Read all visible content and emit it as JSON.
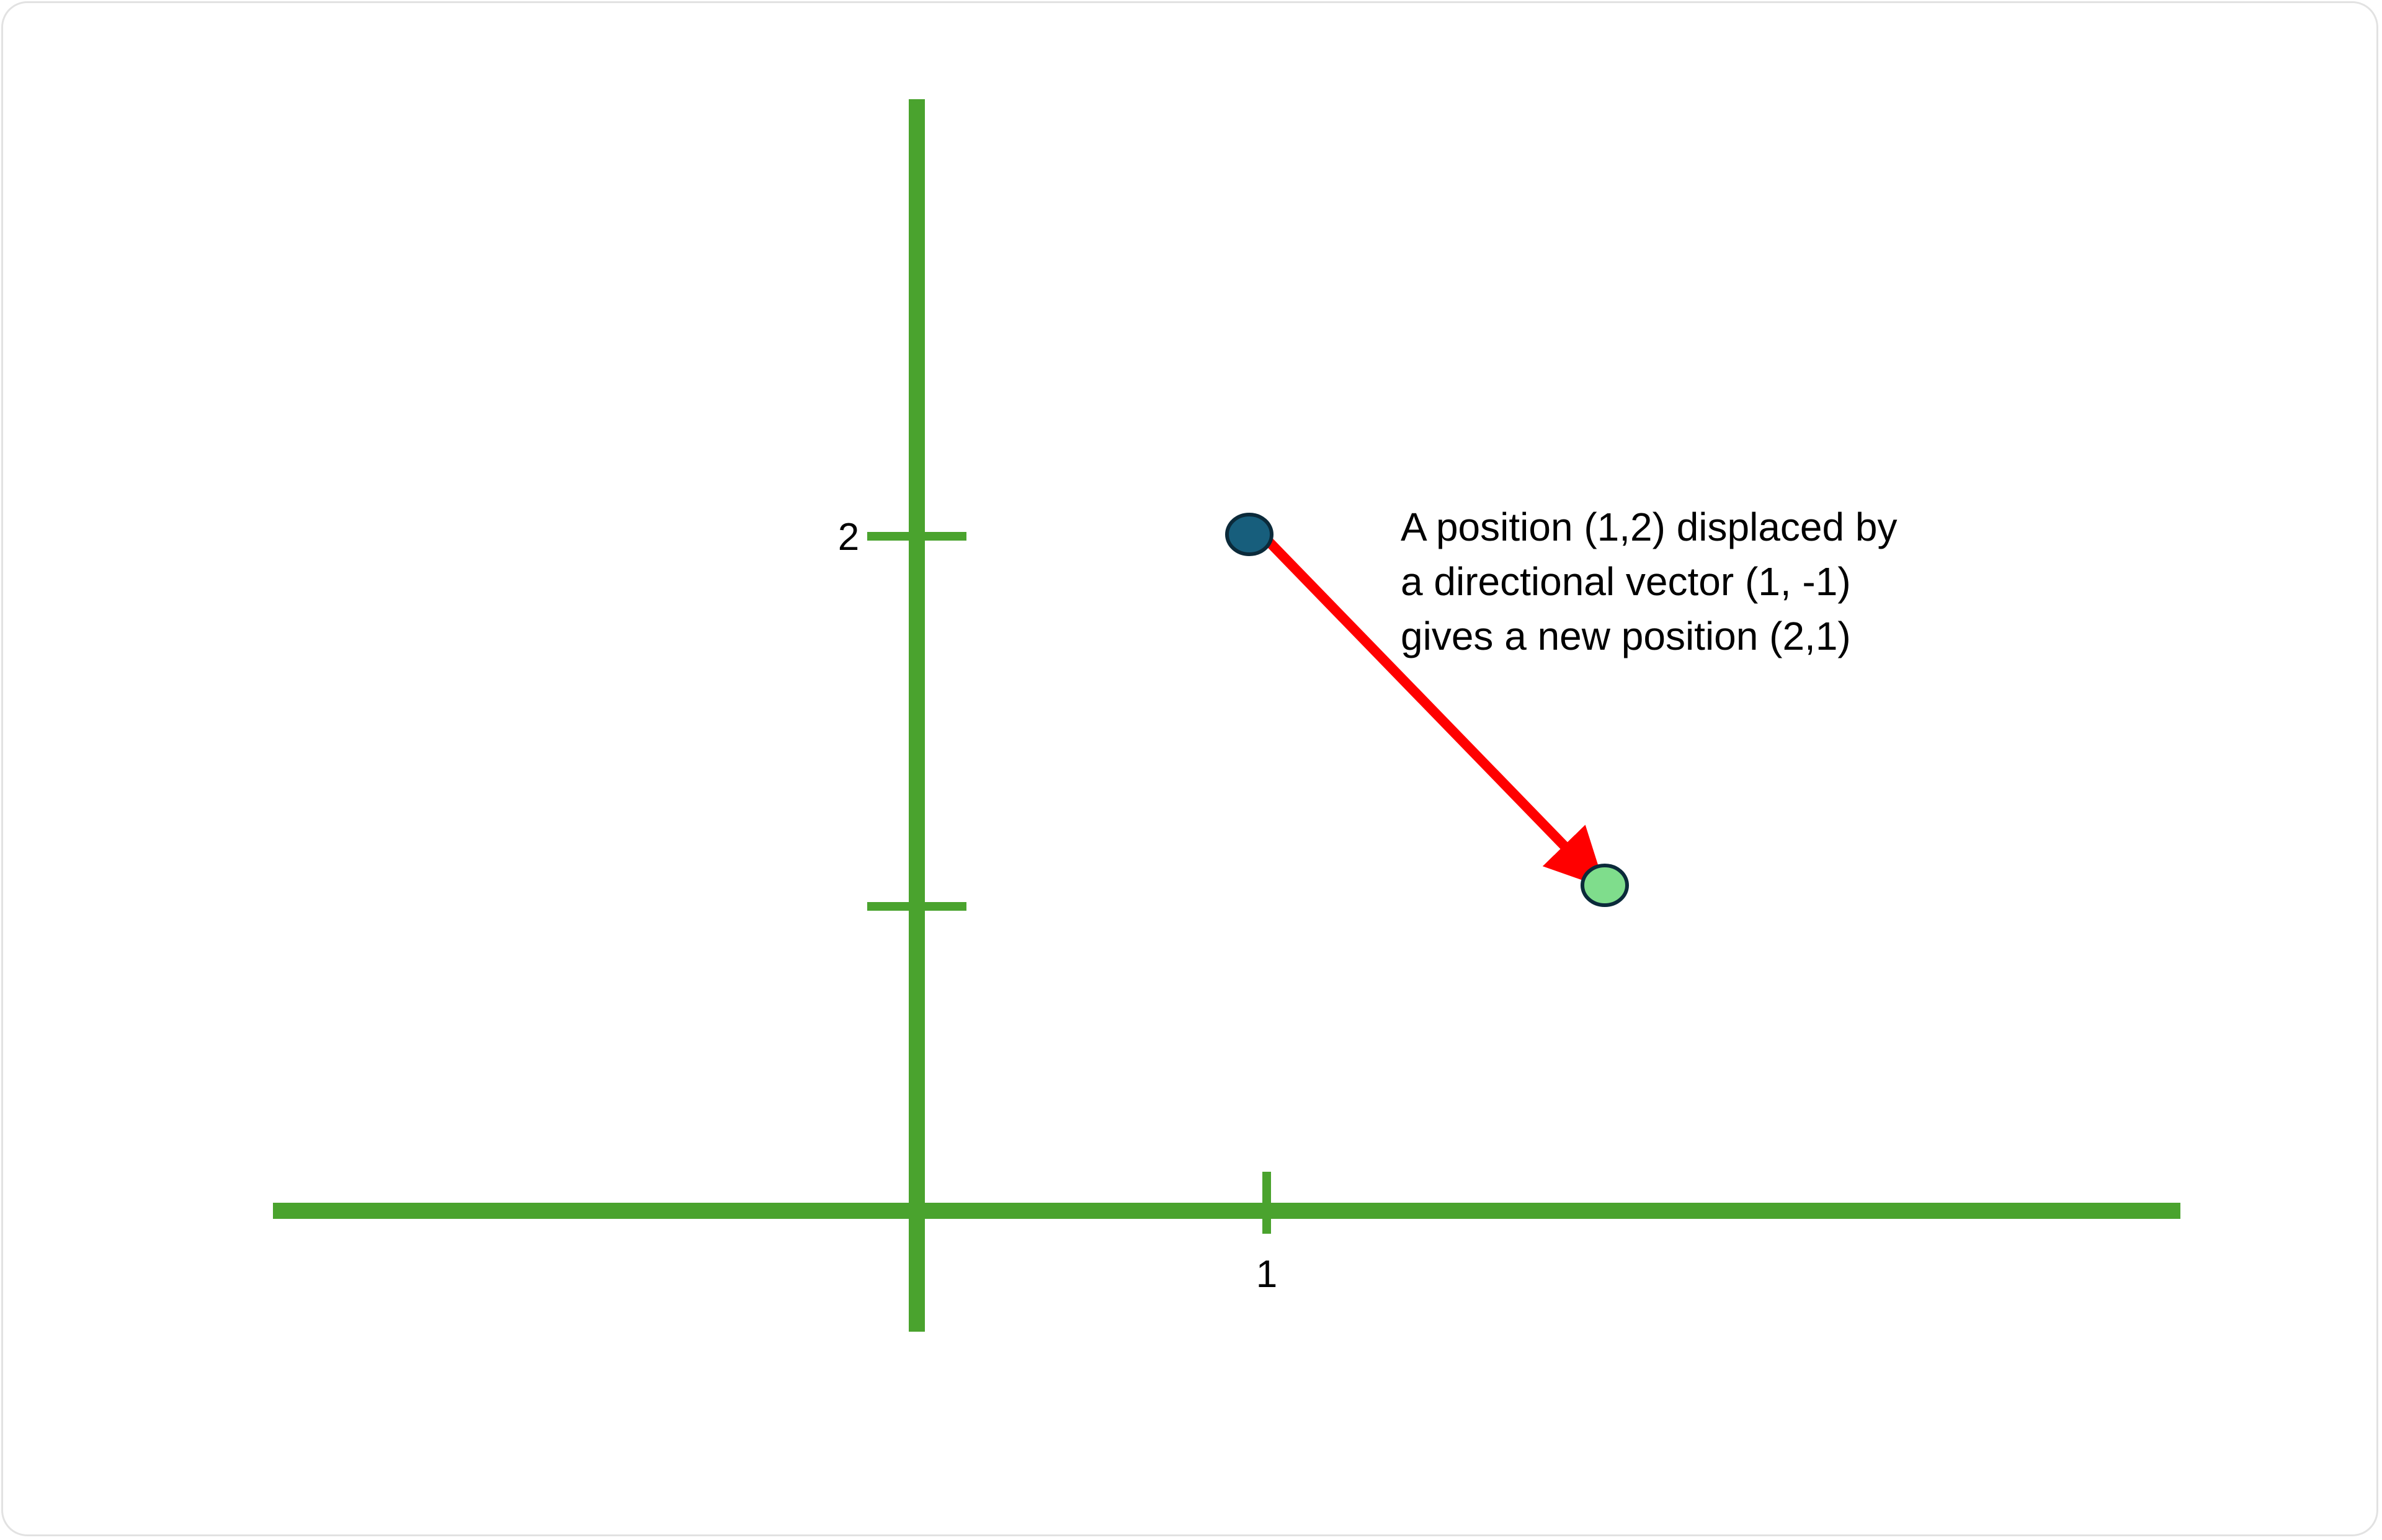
{
  "axes": {
    "color": "#4aa32e",
    "x_tick_label": "1",
    "y_tick_label": "2"
  },
  "points": {
    "start": {
      "x": 1,
      "y": 2,
      "fill": "#175e7c",
      "stroke": "#0b2a3a"
    },
    "end": {
      "x": 2,
      "y": 1,
      "fill": "#7fdd8c",
      "stroke": "#0b2a3a"
    }
  },
  "vector": {
    "dx": 1,
    "dy": -1,
    "color": "#ff0000"
  },
  "caption": {
    "line1": "A position (1,2) displaced by",
    "line2": "a directional vector (1, -1)",
    "line3": "gives a new position (2,1)"
  }
}
